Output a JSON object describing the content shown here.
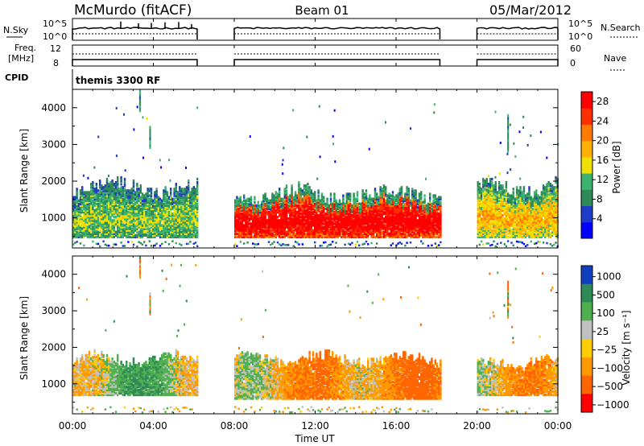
{
  "header": {
    "site": "McMurdo (fitACF)",
    "beam": "Beam 01",
    "date": "05/Mar/2012"
  },
  "top_panels": {
    "nsky_label": "N.Sky",
    "nsky_ticks": [
      "10^5",
      "10^0"
    ],
    "nsearch_label": "N.Search",
    "nsearch_ticks": [
      "10^5",
      "10^0"
    ],
    "freq_label_1": "Freq.",
    "freq_label_2": "[MHz]",
    "freq_ticks": [
      "12",
      "8"
    ],
    "nave_label": "Nave",
    "nave_ticks": [
      "60",
      "0"
    ],
    "cpid_label": "CPID",
    "cpid_value": "themis 3300 RF"
  },
  "colors": {
    "power_scale": [
      "#0000ff",
      "#1e3cc8",
      "#2e8b57",
      "#3cb371",
      "#f0e000",
      "#ffb000",
      "#ff7a00",
      "#ff3000",
      "#ff0000"
    ],
    "velocity_scale": [
      "#1040c0",
      "#2e8b57",
      "#50b050",
      "#c0c0c0",
      "#ffcc00",
      "#ff9900",
      "#ff6600",
      "#ff0000"
    ]
  },
  "chart_data": [
    {
      "type": "heatmap",
      "title": "",
      "ylabel": "Slant Range [km]",
      "xlabel": "",
      "ylim": [
        180,
        4500
      ],
      "yticks": [
        "4000",
        "3000",
        "2000",
        "1000"
      ],
      "xticks": [
        "00:00",
        "04:00",
        "08:00",
        "12:00",
        "16:00",
        "20:00",
        "00:00"
      ],
      "data_gaps_ut": [
        [
          "06:10",
          "08:00"
        ],
        [
          "18:10",
          "20:00"
        ]
      ],
      "colorbar": {
        "label": "Power [dB]",
        "ticks": [
          "28",
          "24",
          "20",
          "16",
          "12",
          "8",
          "4"
        ],
        "range": [
          0,
          30
        ]
      },
      "segments": [
        {
          "x": [
            "00:00",
            "06:10"
          ],
          "main_range_km": [
            500,
            2000
          ],
          "dominant_power_db": 10
        },
        {
          "x": [
            "08:00",
            "18:10"
          ],
          "main_range_km": [
            500,
            1800
          ],
          "dominant_power_db": 24
        },
        {
          "x": [
            "20:00",
            "24:00"
          ],
          "main_range_km": [
            500,
            2000
          ],
          "dominant_power_db": 14
        }
      ]
    },
    {
      "type": "heatmap",
      "title": "",
      "ylabel": "Slant Range [km]",
      "xlabel": "Time UT",
      "ylim": [
        180,
        4500
      ],
      "yticks": [
        "4000",
        "3000",
        "2000",
        "1000"
      ],
      "xticks": [
        "00:00",
        "04:00",
        "08:00",
        "12:00",
        "16:00",
        "20:00",
        "00:00"
      ],
      "colorbar": {
        "label": "Velocity [m s⁻¹]",
        "ticks": [
          "1000",
          "500",
          "100",
          "25",
          "−25",
          "−100",
          "−500",
          "−1000"
        ]
      },
      "segments": [
        {
          "x": [
            "00:00",
            "06:10"
          ],
          "main_range_km": [
            700,
            1800
          ],
          "dominant_velocity_ms": 100
        },
        {
          "x": [
            "08:00",
            "18:10"
          ],
          "main_range_km": [
            600,
            1800
          ],
          "dominant_velocity_ms": -100
        },
        {
          "x": [
            "20:00",
            "24:00"
          ],
          "main_range_km": [
            700,
            1700
          ],
          "dominant_velocity_ms": -100
        }
      ]
    }
  ]
}
